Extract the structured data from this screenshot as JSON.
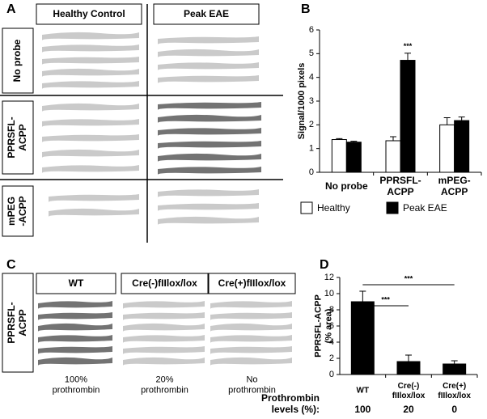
{
  "panels": {
    "letters": [
      "A",
      "B",
      "C",
      "D"
    ],
    "A": {
      "columns": [
        "Healthy Control",
        "Peak EAE"
      ],
      "rows": [
        "No probe",
        "PPRSFL-\nACPP",
        "mPEG\n-ACPP"
      ]
    },
    "C": {
      "columns": [
        "WT",
        "Cre(-)fIIlox/lox",
        "Cre(+)fIIlox/lox"
      ],
      "rows": [
        "PPRSFL-\nACPP"
      ],
      "captions": [
        "100%\nprothrombin",
        "20%\nprothrombin",
        "No\nprothrombin"
      ]
    }
  },
  "chart_data": [
    {
      "type": "bar",
      "y_label": "Signal/1000 pixels",
      "categories": [
        "No probe",
        "PPRSFL-\nACPP",
        "mPEG-\nACPP"
      ],
      "series": [
        {
          "name": "Healthy",
          "color": "#ffffff",
          "values": [
            1.38,
            1.33,
            2.0
          ],
          "errors": [
            0.04,
            0.17,
            0.3
          ]
        },
        {
          "name": "Peak EAE",
          "color": "#000000",
          "values": [
            1.27,
            4.72,
            2.18
          ],
          "errors": [
            0.04,
            0.3,
            0.15
          ]
        }
      ],
      "ylim": [
        0,
        6
      ],
      "yticks": [
        0,
        1,
        2,
        3,
        4,
        5,
        6
      ],
      "annotations": [
        "***"
      ]
    },
    {
      "type": "bar",
      "y_label": "PPRSFL-ACPP\n(% area)",
      "categories": [
        "WT",
        "Cre(-)\nfIIlox/lox",
        "Cre(+)\nfIIlox/lox"
      ],
      "series": [
        {
          "color": "#000000",
          "values": [
            9.0,
            1.6,
            1.3
          ],
          "errors": [
            1.3,
            0.8,
            0.4
          ]
        }
      ],
      "ylim": [
        0,
        12
      ],
      "yticks": [
        0,
        2,
        4,
        6,
        8,
        10,
        12
      ],
      "annotations": [
        "***",
        "***"
      ],
      "prothrombin_label": "Prothrombin\nlevels (%):",
      "prothrombin_levels": [
        100,
        20,
        0
      ]
    }
  ]
}
